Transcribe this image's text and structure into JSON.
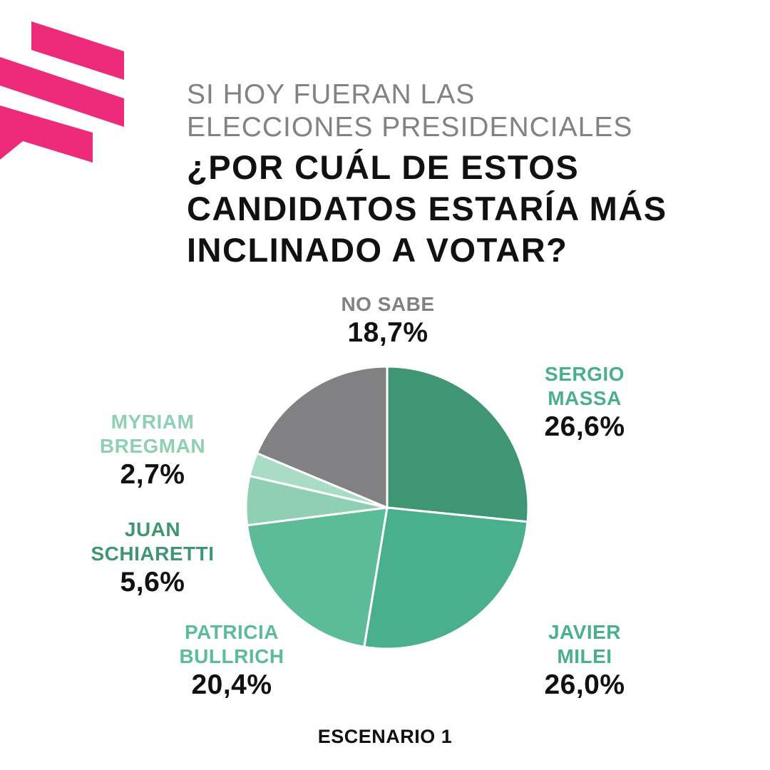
{
  "header": {
    "subtitle_lines": [
      "SI HOY FUERAN LAS",
      "ELECCIONES PRESIDENCIALES"
    ],
    "question_lines": [
      "¿POR CUÁL DE ESTOS",
      "CANDIDATOS ESTARÍA MÁS",
      "INCLINADO A VOTAR?"
    ]
  },
  "colors": {
    "brand": "#ee2a7b",
    "massa": "#3f9574",
    "milei": "#4aaf8c",
    "bullrich": "#5cbb98",
    "schiaretti": "#8fd0b5",
    "bregman": "#a9dcc5",
    "no_sabe": "#818083",
    "label_massa": "#4aaf8c",
    "label_milei": "#4aaf8c",
    "label_bullrich": "#5cbb98",
    "label_schiaretti": "#3f9574",
    "label_bregman": "#8fd0b5",
    "label_no_sabe": "#818083"
  },
  "chart_data": {
    "type": "pie",
    "title": "¿POR CUÁL DE ESTOS CANDIDATOS ESTARÍA MÁS INCLINADO A VOTAR?",
    "start_angle": "12 o'clock, clockwise",
    "slices": [
      {
        "key": "massa",
        "name_lines": [
          "SERGIO",
          "MASSA"
        ],
        "value": 26.6,
        "label": "26,6%"
      },
      {
        "key": "milei",
        "name_lines": [
          "JAVIER",
          "MILEI"
        ],
        "value": 26.0,
        "label": "26,0%"
      },
      {
        "key": "bullrich",
        "name_lines": [
          "PATRICIA",
          "BULLRICH"
        ],
        "value": 20.4,
        "label": "20,4%"
      },
      {
        "key": "schiaretti",
        "name_lines": [
          "JUAN",
          "SCHIARETTI"
        ],
        "value": 5.6,
        "label": "5,6%"
      },
      {
        "key": "bregman",
        "name_lines": [
          "MYRIAM",
          "BREGMAN"
        ],
        "value": 2.7,
        "label": "2,7%"
      },
      {
        "key": "no_sabe",
        "name_lines": [
          "NO SABE"
        ],
        "value": 18.7,
        "label": "18,7%"
      }
    ]
  },
  "footer": {
    "scenario": "ESCENARIO 1"
  }
}
